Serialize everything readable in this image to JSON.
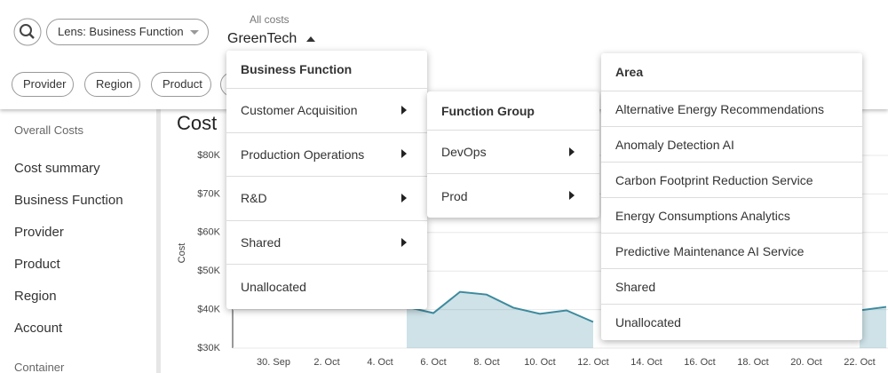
{
  "toolbar": {
    "lens": "Lens: Business Function",
    "scope_label": "All costs",
    "scope_value": "GreenTech"
  },
  "filters": [
    "Provider",
    "Region",
    "Product"
  ],
  "sidebar": {
    "heading": "Overall Costs",
    "items": [
      "Cost summary",
      "Business Function",
      "Provider",
      "Product",
      "Region",
      "Account"
    ],
    "next_heading": "Container"
  },
  "chart_data": {
    "type": "area",
    "title": "Cost",
    "y_label": "Cost",
    "categories": [
      null,
      "30. Sep",
      null,
      "2. Oct",
      null,
      "4. Oct",
      null,
      "6. Oct",
      null,
      "8. Oct",
      null,
      "10. Oct",
      null,
      "12. Oct",
      null,
      "14. Oct",
      null,
      "16. Oct",
      null,
      "18. Oct",
      null,
      "20. Oct",
      null,
      "22. Oct",
      null
    ],
    "values": [
      null,
      null,
      null,
      null,
      null,
      null,
      40700,
      39100,
      44600,
      43900,
      40500,
      38900,
      39800,
      36800,
      null,
      null,
      null,
      null,
      null,
      null,
      null,
      null,
      null,
      39800,
      40700
    ],
    "color": "#3d8a9e",
    "ylim": [
      30000,
      80000
    ],
    "yticks": [
      {
        "value": 30000,
        "label": "$30K"
      },
      {
        "value": 40000,
        "label": "$40K"
      },
      {
        "value": 50000,
        "label": "$50K"
      },
      {
        "value": 60000,
        "label": "$60K"
      },
      {
        "value": 70000,
        "label": "$70K"
      },
      {
        "value": 80000,
        "label": "$80K"
      }
    ],
    "grid": true
  },
  "menus": [
    {
      "header": "Business Function",
      "items": [
        {
          "label": "Customer Acquisition",
          "submenu": true
        },
        {
          "label": "Production Operations",
          "submenu": true
        },
        {
          "label": "R&D",
          "submenu": true
        },
        {
          "label": "Shared",
          "submenu": true
        },
        {
          "label": "Unallocated",
          "submenu": false
        }
      ]
    },
    {
      "header": "Function Group",
      "items": [
        {
          "label": "DevOps",
          "submenu": true
        },
        {
          "label": "Prod",
          "submenu": true
        }
      ]
    },
    {
      "header": "Area",
      "items": [
        {
          "label": "Alternative Energy Recommendations",
          "submenu": false
        },
        {
          "label": "Anomaly Detection AI",
          "submenu": false
        },
        {
          "label": "Carbon Footprint Reduction Service",
          "submenu": false
        },
        {
          "label": "Energy Consumptions Analytics",
          "submenu": false
        },
        {
          "label": "Predictive Maintenance AI Service",
          "submenu": false
        },
        {
          "label": "Shared",
          "submenu": false
        },
        {
          "label": "Unallocated",
          "submenu": false
        }
      ]
    }
  ]
}
